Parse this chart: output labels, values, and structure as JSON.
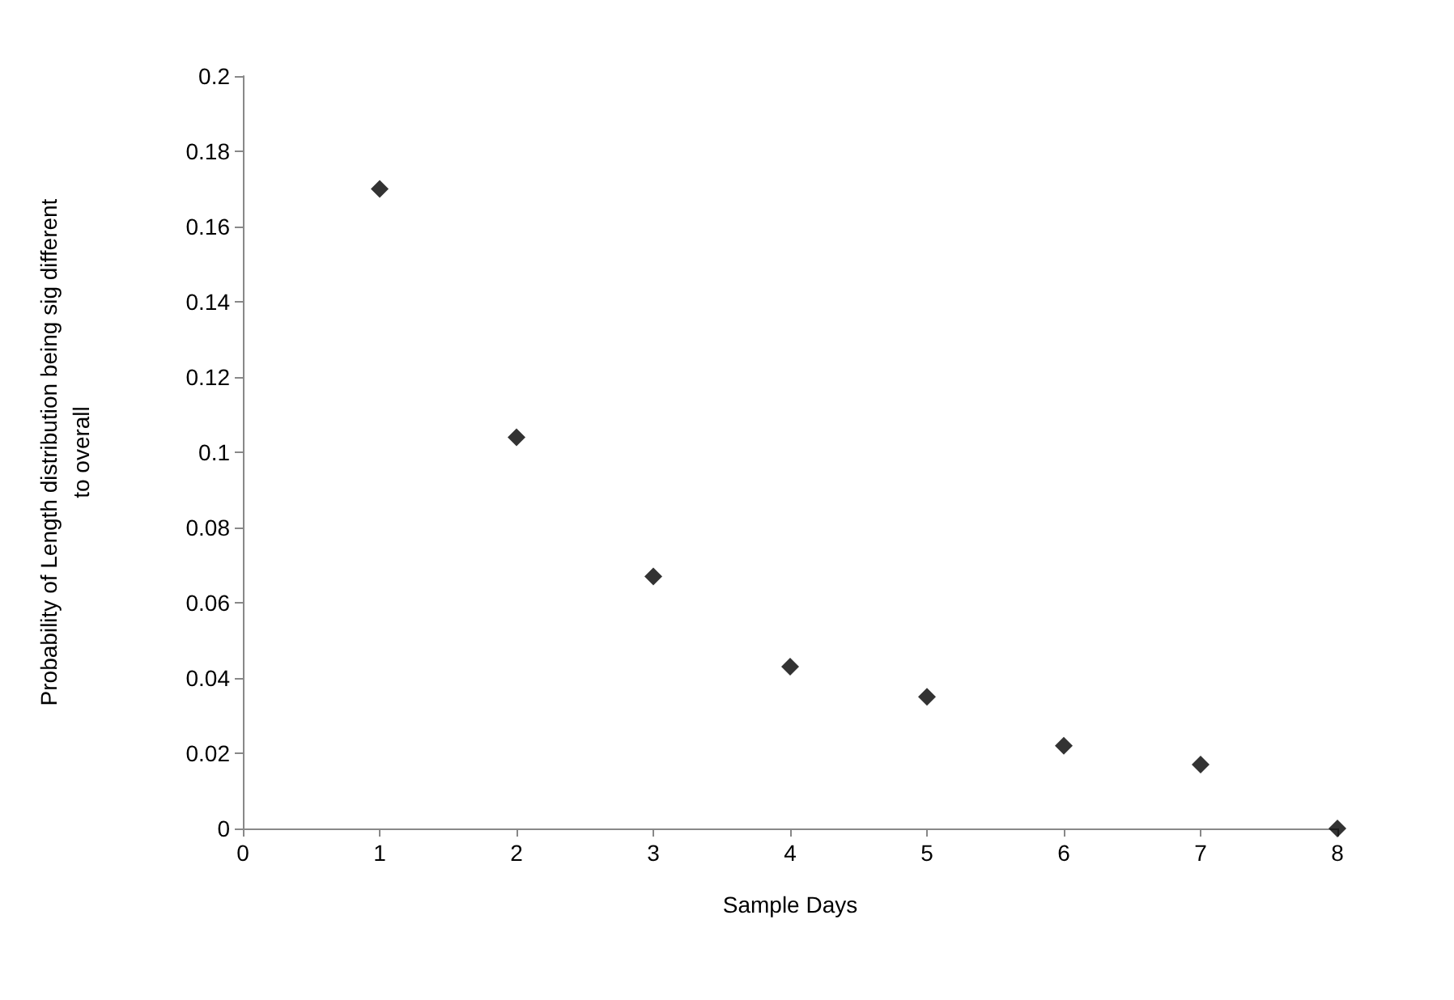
{
  "chart_data": {
    "type": "scatter",
    "xlabel": "Sample Days",
    "ylabel": "Probability of Length distribution being sig different\nto overall",
    "x": [
      1,
      2,
      3,
      4,
      5,
      6,
      7,
      8
    ],
    "values": [
      0.17,
      0.104,
      0.067,
      0.043,
      0.035,
      0.022,
      0.017,
      0
    ],
    "color": "#000000",
    "marker": "diamond",
    "xlim": [
      0,
      8
    ],
    "xticks": [
      0,
      1,
      2,
      3,
      4,
      5,
      6,
      7,
      8
    ],
    "ylim": [
      0,
      0.2
    ],
    "yticks": [
      0,
      0.02,
      0.04,
      0.06,
      0.08,
      0.1,
      0.12,
      0.14,
      0.16,
      0.18,
      0.2
    ],
    "grid": false
  }
}
